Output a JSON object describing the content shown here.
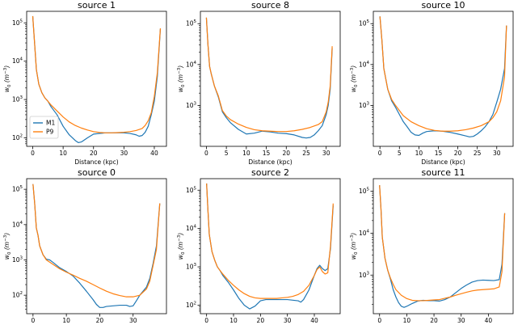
{
  "figure": {
    "series_names": [
      "M1",
      "P9"
    ],
    "series_colors": [
      "#1f77b4",
      "#ff7f0e"
    ],
    "xlabel": "Distance (kpc)",
    "ylabel": "w",
    "ylabel_sub": "0",
    "ylabel_unit": "(m",
    "ylabel_unit_exp": "−3",
    "ylabel_unit_close": ")",
    "tick_base": "10"
  },
  "chart_data": [
    {
      "type": "line",
      "title": "source 1",
      "xlabel": "Distance (kpc)",
      "ylabel": "w0 (m^-3)",
      "yscale": "log",
      "xlim": [
        -2,
        44
      ],
      "ylim": [
        60,
        200000
      ],
      "xticks": [
        0,
        10,
        20,
        30,
        40
      ],
      "yticks": [
        2,
        3,
        4,
        5
      ],
      "legend": "lower-left",
      "series": [
        {
          "name": "M1",
          "x": [
            0,
            0.6,
            1.2,
            2,
            3,
            4,
            5,
            6,
            8,
            10,
            12,
            14,
            15,
            16,
            18,
            20,
            22,
            24,
            26,
            28,
            30,
            32,
            34,
            35,
            36,
            37,
            38,
            39,
            40,
            41,
            42
          ],
          "y": [
            150000,
            30000,
            6000,
            2500,
            1500,
            1100,
            900,
            650,
            400,
            200,
            120,
            85,
            75,
            78,
            100,
            125,
            130,
            135,
            135,
            135,
            135,
            130,
            120,
            110,
            115,
            140,
            200,
            400,
            900,
            4000,
            70000
          ]
        },
        {
          "name": "P9",
          "x": [
            0,
            0.6,
            1.2,
            2,
            3,
            4,
            5,
            6,
            8,
            10,
            12,
            14,
            16,
            18,
            20,
            22,
            24,
            26,
            28,
            30,
            32,
            34,
            36,
            37,
            38,
            39,
            40,
            41,
            42
          ],
          "y": [
            150000,
            30000,
            6000,
            2500,
            1500,
            1100,
            900,
            720,
            500,
            350,
            260,
            210,
            180,
            160,
            145,
            138,
            135,
            135,
            137,
            140,
            145,
            155,
            175,
            210,
            280,
            450,
            1200,
            5000,
            72000
          ]
        }
      ]
    },
    {
      "type": "line",
      "title": "source 8",
      "xlabel": "Distance (kpc)",
      "ylabel": "w0 (m^-3)",
      "yscale": "log",
      "xlim": [
        -1.5,
        33.5
      ],
      "ylim": [
        100,
        200000
      ],
      "xticks": [
        0,
        5,
        10,
        15,
        20,
        25,
        30
      ],
      "yticks": [
        3,
        4,
        5
      ],
      "series": [
        {
          "name": "M1",
          "x": [
            0,
            0.4,
            0.8,
            1.2,
            2,
            3,
            4,
            5,
            6,
            8,
            10,
            12,
            14,
            16,
            18,
            20,
            22,
            24,
            25,
            26,
            27,
            28,
            29,
            30,
            30.5,
            31,
            31.5
          ],
          "y": [
            140000,
            30000,
            9000,
            6000,
            3000,
            1600,
            700,
            500,
            380,
            260,
            200,
            210,
            235,
            225,
            210,
            205,
            190,
            165,
            160,
            165,
            190,
            240,
            320,
            600,
            1000,
            2500,
            25000
          ]
        },
        {
          "name": "P9",
          "x": [
            0,
            0.4,
            0.8,
            1.2,
            2,
            3,
            4,
            5,
            6,
            8,
            10,
            12,
            14,
            16,
            18,
            20,
            22,
            24,
            26,
            28,
            29,
            30,
            30.5,
            31,
            31.5
          ],
          "y": [
            140000,
            30000,
            9000,
            6000,
            3000,
            1700,
            750,
            550,
            450,
            350,
            290,
            255,
            240,
            235,
            230,
            230,
            240,
            260,
            290,
            340,
            400,
            700,
            1200,
            3000,
            28000
          ]
        }
      ]
    },
    {
      "type": "line",
      "title": "source 10",
      "xlabel": "Distance (kpc)",
      "ylabel": "w0 (m^-3)",
      "yscale": "log",
      "xlim": [
        -1.7,
        34.2
      ],
      "ylim": [
        100,
        200000
      ],
      "xticks": [
        0,
        5,
        10,
        15,
        20,
        25,
        30
      ],
      "yticks": [
        3,
        4,
        5
      ],
      "series": [
        {
          "name": "M1",
          "x": [
            0,
            0.5,
            1,
            2,
            3,
            4,
            5,
            6,
            7,
            8,
            9,
            10,
            11,
            12,
            14,
            16,
            18,
            20,
            22,
            23,
            24,
            25,
            26,
            27,
            28,
            29,
            30,
            31,
            32,
            32.5
          ],
          "y": [
            150000,
            40000,
            8000,
            2500,
            1300,
            900,
            600,
            400,
            300,
            220,
            190,
            185,
            210,
            230,
            240,
            235,
            220,
            200,
            180,
            170,
            175,
            200,
            240,
            300,
            400,
            600,
            1200,
            2500,
            8000,
            90000
          ]
        },
        {
          "name": "P9",
          "x": [
            0,
            0.5,
            1,
            2,
            3,
            4,
            5,
            6,
            8,
            10,
            12,
            14,
            16,
            18,
            20,
            22,
            24,
            26,
            28,
            29,
            30,
            31,
            32,
            32.5
          ],
          "y": [
            150000,
            40000,
            8000,
            2500,
            1400,
            1000,
            750,
            560,
            400,
            320,
            270,
            245,
            235,
            235,
            240,
            255,
            280,
            320,
            400,
            500,
            700,
            1300,
            5000,
            90000
          ]
        }
      ]
    },
    {
      "type": "line",
      "title": "source 0",
      "xlabel": "Distance (kpc)",
      "ylabel": "w0 (m^-3)",
      "yscale": "log",
      "xlim": [
        -1.9,
        40
      ],
      "ylim": [
        30,
        200000
      ],
      "xticks": [
        0,
        10,
        20,
        30
      ],
      "yticks": [
        2,
        3,
        4,
        5
      ],
      "series": [
        {
          "name": "M1",
          "x": [
            0,
            0.5,
            1,
            1.5,
            2,
            3,
            4,
            5,
            6,
            8,
            10,
            12,
            14,
            16,
            18,
            19,
            20,
            21,
            22,
            24,
            26,
            28,
            29,
            30,
            31,
            32,
            33,
            34,
            35,
            36,
            37,
            38
          ],
          "y": [
            140000,
            40000,
            8000,
            5000,
            2500,
            1400,
            1050,
            1000,
            850,
            600,
            470,
            350,
            220,
            130,
            75,
            55,
            45,
            45,
            48,
            50,
            52,
            52,
            48,
            50,
            70,
            100,
            130,
            170,
            300,
            800,
            2500,
            40000
          ]
        },
        {
          "name": "P9",
          "x": [
            0,
            0.5,
            1,
            1.5,
            2,
            3,
            4,
            6,
            8,
            10,
            12,
            14,
            16,
            18,
            20,
            22,
            24,
            26,
            28,
            30,
            32,
            34,
            35,
            36,
            37,
            38
          ],
          "y": [
            140000,
            40000,
            8000,
            5000,
            2500,
            1400,
            1000,
            750,
            560,
            450,
            370,
            300,
            250,
            200,
            160,
            130,
            110,
            98,
            90,
            90,
            100,
            150,
            250,
            700,
            2000,
            40000
          ]
        }
      ]
    },
    {
      "type": "line",
      "title": "source 2",
      "xlabel": "Distance (kpc)",
      "ylabel": "w0 (m^-3)",
      "yscale": "log",
      "xlim": [
        -2.3,
        49.6
      ],
      "ylim": [
        60,
        200000
      ],
      "xticks": [
        0,
        10,
        20,
        30,
        40
      ],
      "yticks": [
        2,
        3,
        4,
        5
      ],
      "series": [
        {
          "name": "M1",
          "x": [
            0,
            0.5,
            1,
            2,
            3,
            4,
            5,
            6,
            8,
            10,
            12,
            14,
            16,
            18,
            20,
            22,
            24,
            26,
            28,
            30,
            32,
            34,
            35,
            36,
            38,
            40,
            41,
            42,
            43,
            44,
            45,
            46,
            47
          ],
          "y": [
            150000,
            30000,
            7000,
            2500,
            1500,
            1000,
            800,
            600,
            400,
            250,
            150,
            100,
            80,
            95,
            130,
            140,
            140,
            140,
            140,
            140,
            135,
            130,
            120,
            140,
            250,
            600,
            900,
            1100,
            900,
            800,
            900,
            3000,
            40000
          ]
        },
        {
          "name": "P9",
          "x": [
            0,
            0.5,
            1,
            2,
            3,
            4,
            5,
            6,
            8,
            10,
            12,
            14,
            16,
            18,
            20,
            22,
            24,
            26,
            28,
            30,
            32,
            34,
            36,
            38,
            40,
            41,
            42,
            43,
            44,
            45,
            46,
            47
          ],
          "y": [
            150000,
            30000,
            7000,
            2500,
            1500,
            1000,
            800,
            650,
            450,
            330,
            250,
            200,
            170,
            155,
            150,
            150,
            150,
            150,
            155,
            160,
            170,
            190,
            230,
            330,
            600,
            850,
            1000,
            750,
            650,
            700,
            3500,
            45000
          ]
        }
      ]
    },
    {
      "type": "line",
      "title": "source 11",
      "xlabel": "Distance (kpc)",
      "ylabel": "w0 (m^-3)",
      "yscale": "log",
      "xlim": [
        -2.3,
        49.1
      ],
      "ylim": [
        120,
        200000
      ],
      "xticks": [
        0,
        10,
        20,
        30,
        40
      ],
      "yticks": [
        3,
        4,
        5
      ],
      "series": [
        {
          "name": "M1",
          "x": [
            0,
            0.5,
            1,
            2,
            3,
            4,
            5,
            6,
            7,
            8,
            9,
            10,
            12,
            14,
            16,
            18,
            20,
            22,
            24,
            26,
            28,
            30,
            32,
            34,
            36,
            38,
            40,
            42,
            44,
            45,
            46
          ],
          "y": [
            140000,
            40000,
            8000,
            2500,
            1300,
            800,
            450,
            300,
            220,
            180,
            170,
            180,
            210,
            240,
            250,
            245,
            245,
            240,
            260,
            300,
            380,
            480,
            580,
            680,
            740,
            760,
            750,
            740,
            780,
            1800,
            30000
          ]
        },
        {
          "name": "P9",
          "x": [
            0,
            0.5,
            1,
            2,
            3,
            4,
            5,
            6,
            8,
            10,
            12,
            14,
            16,
            18,
            20,
            22,
            24,
            26,
            28,
            30,
            32,
            34,
            36,
            38,
            40,
            42,
            44,
            45,
            46
          ],
          "y": [
            140000,
            40000,
            8000,
            2500,
            1300,
            850,
            600,
            450,
            330,
            275,
            250,
            245,
            245,
            250,
            255,
            260,
            280,
            300,
            330,
            360,
            390,
            420,
            440,
            450,
            460,
            470,
            520,
            1200,
            30000
          ]
        }
      ]
    }
  ]
}
